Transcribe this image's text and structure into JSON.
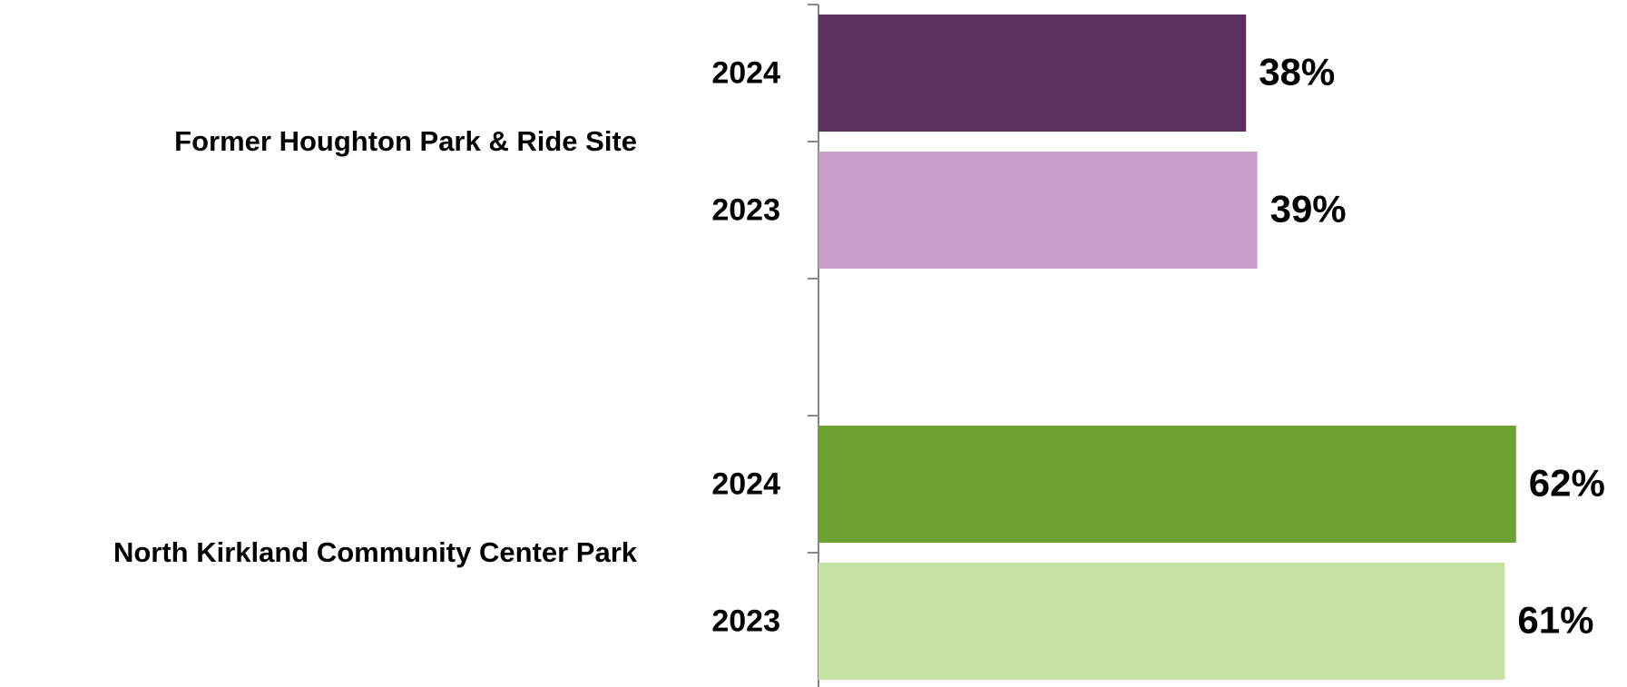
{
  "chart_data": {
    "type": "bar",
    "orientation": "horizontal",
    "groups": [
      {
        "name": "Former Houghton Park & Ride Site",
        "categories": [
          "2024",
          "2023"
        ],
        "values": [
          38,
          39
        ],
        "value_labels": [
          "38%",
          "39%"
        ],
        "colors": [
          "#5c3160",
          "#c99ecb"
        ]
      },
      {
        "name": "North Kirkland Community Center Park",
        "categories": [
          "2024",
          "2023"
        ],
        "values": [
          62,
          61
        ],
        "value_labels": [
          "62%",
          "61%"
        ],
        "colors": [
          "#6da233",
          "#c6e3a3"
        ]
      }
    ]
  }
}
